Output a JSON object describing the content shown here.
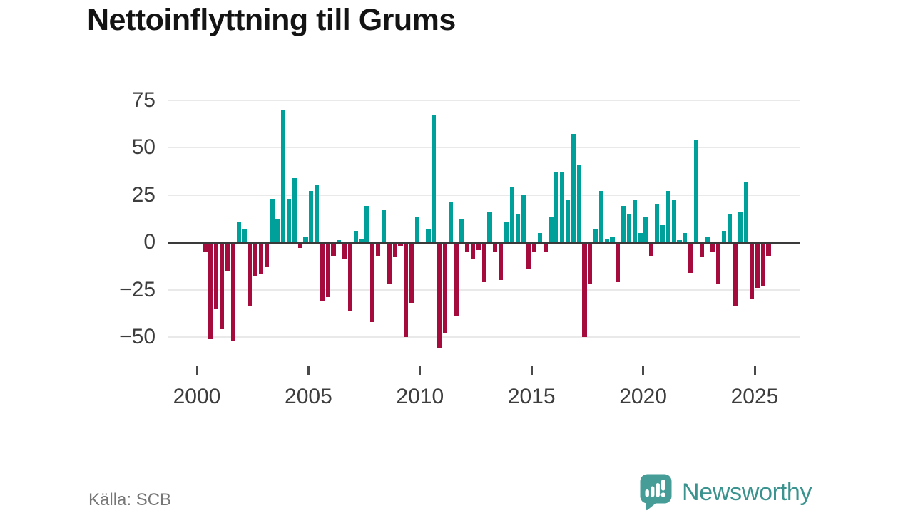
{
  "title": "Nettoinflyttning till Grums",
  "source": "Källa: SCB",
  "branding": {
    "name": "Newsworthy"
  },
  "colors": {
    "positive_bar": "#00a09a",
    "negative_bar": "#a50b3d",
    "gridline": "#e9e9e9",
    "zero_line": "#3a3a3a",
    "axis_text": "#3d3d3d",
    "title_text": "#141414",
    "source_text": "#767676",
    "brand_teal": "#3a938e",
    "logo_bubble": "#469c97"
  },
  "chart_data": {
    "type": "bar",
    "title": "Nettoinflyttning till Grums",
    "xlabel": "",
    "ylabel": "",
    "frequency": "quarterly",
    "start_year": 2000,
    "start_quarter": 1,
    "x_tick_labels": [
      "2000",
      "2005",
      "2010",
      "2015",
      "2020",
      "2025"
    ],
    "x_tick_years": [
      2000,
      2005,
      2010,
      2015,
      2020,
      2025
    ],
    "y_ticks": [
      {
        "label": "75",
        "value": 75
      },
      {
        "label": "50",
        "value": 50
      },
      {
        "label": "25",
        "value": 25
      },
      {
        "label": "0",
        "value": 0
      },
      {
        "label": "−25",
        "value": -25
      },
      {
        "label": "−50",
        "value": -50
      }
    ],
    "x_domain": [
      1998.7,
      2027.0
    ],
    "ylim": [
      -60,
      80
    ],
    "grid": "horizontal",
    "legend": "none",
    "values": [
      0,
      -5,
      -51,
      -35,
      -46,
      -15,
      -52,
      11,
      7,
      -34,
      -18,
      -17,
      -13,
      23,
      12,
      70,
      23,
      34,
      -3,
      3,
      27,
      30,
      -31,
      -29,
      -7,
      1,
      -9,
      -36,
      6,
      2,
      19,
      -42,
      -7,
      17,
      -22,
      -8,
      -2,
      -50,
      -32,
      13,
      0,
      7,
      67,
      -56,
      -48,
      21,
      -39,
      12,
      -5,
      -9,
      -4,
      -21,
      16,
      -5,
      -20,
      11,
      29,
      15,
      25,
      -14,
      -5,
      5,
      -5,
      13,
      37,
      37,
      22,
      57,
      41,
      -50,
      -22,
      7,
      27,
      2,
      3,
      -21,
      19,
      15,
      22,
      5,
      13,
      -7,
      20,
      9,
      27,
      22,
      1,
      5,
      -16,
      54,
      -8,
      3,
      -5,
      -22,
      6,
      15,
      -34,
      16,
      32,
      -30,
      -24,
      -23,
      -7
    ]
  }
}
